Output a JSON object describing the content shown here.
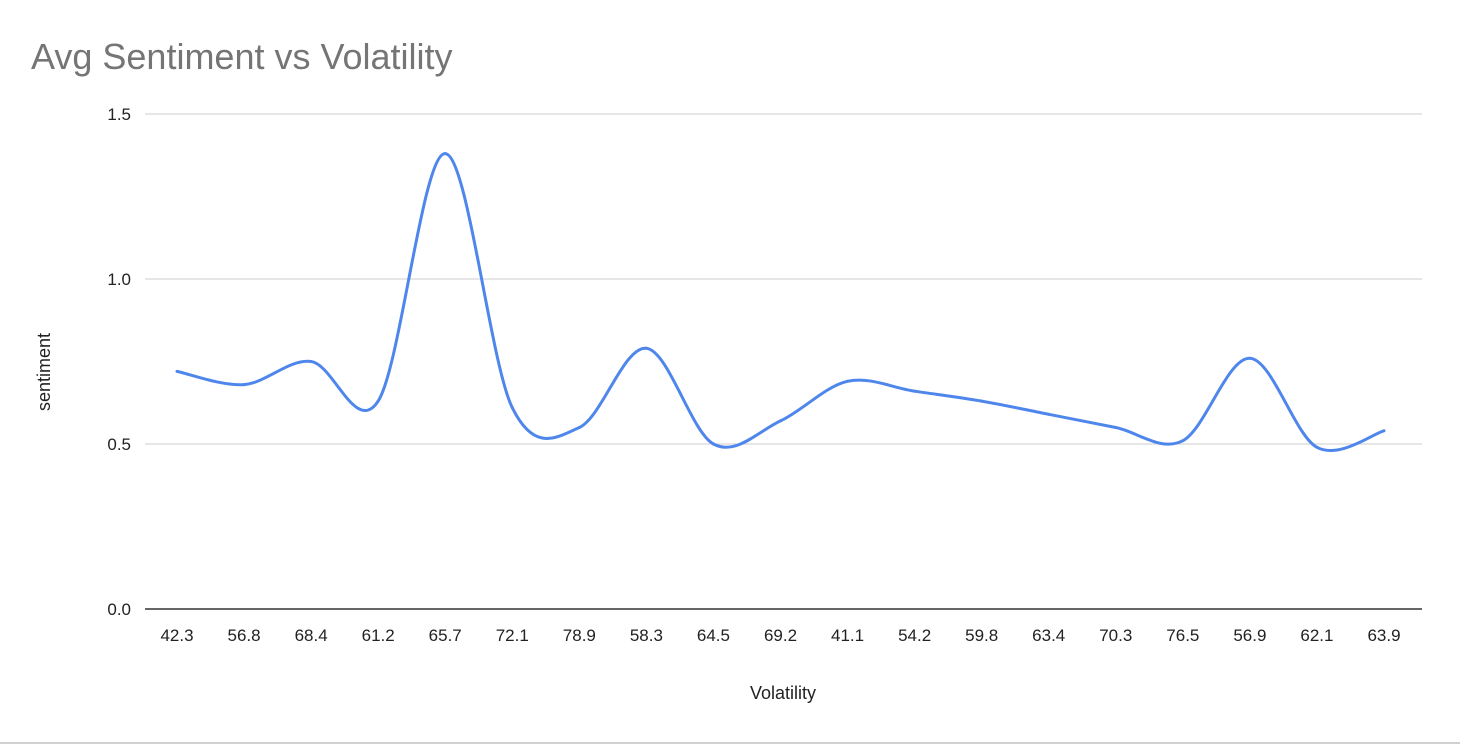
{
  "chart_data": {
    "type": "line",
    "title": "Avg Sentiment vs Volatility",
    "xlabel": "Volatility",
    "ylabel": "sentiment",
    "categories": [
      "42.3",
      "56.8",
      "68.4",
      "61.2",
      "65.7",
      "72.1",
      "78.9",
      "58.3",
      "64.5",
      "69.2",
      "41.1",
      "54.2",
      "59.8",
      "63.4",
      "70.3",
      "76.5",
      "56.9",
      "62.1",
      "63.9"
    ],
    "series": [
      {
        "name": "sentiment",
        "values": [
          0.72,
          0.68,
          0.75,
          0.63,
          1.38,
          0.61,
          0.55,
          0.79,
          0.5,
          0.57,
          0.69,
          0.66,
          0.63,
          0.59,
          0.55,
          0.51,
          0.76,
          0.49,
          0.54
        ]
      }
    ],
    "yticks": [
      "0.0",
      "0.5",
      "1.0",
      "1.5"
    ],
    "ylim": [
      0,
      1.5
    ],
    "grid": true,
    "smooth": true,
    "line_color": "#4f86ec"
  }
}
